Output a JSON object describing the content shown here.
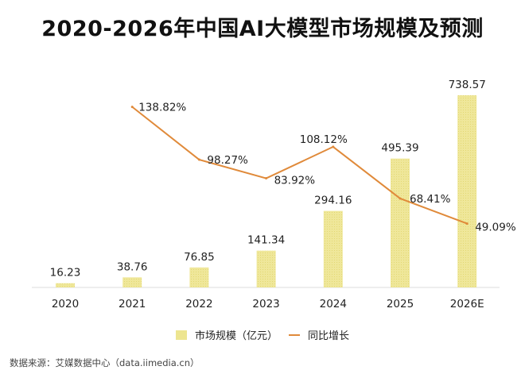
{
  "title": "2020-2026年中国AI大模型市场规模及预测",
  "chart_data": {
    "type": "bar+line",
    "title": "2020-2026年中国AI大模型市场规模及预测",
    "categories": [
      "2020",
      "2021",
      "2022",
      "2023",
      "2024",
      "2025",
      "2026E"
    ],
    "series": [
      {
        "name": "市场规模（亿元）",
        "type": "bar",
        "values": [
          16.23,
          38.76,
          76.85,
          141.34,
          294.16,
          495.39,
          738.57
        ],
        "labels": [
          "16.23",
          "38.76",
          "76.85",
          "141.34",
          "294.16",
          "495.39",
          "738.57"
        ],
        "color": "#ede590"
      },
      {
        "name": "同比增长",
        "type": "line",
        "values": [
          null,
          138.82,
          98.27,
          83.92,
          108.12,
          68.41,
          49.09
        ],
        "labels": [
          "",
          "138.82%",
          "98.27%",
          "83.92%",
          "108.12%",
          "68.41%",
          "49.09%"
        ],
        "color": "#e08a3a"
      }
    ],
    "legend": "bottom",
    "grid": false
  },
  "legend": {
    "bar": "市场规模（亿元）",
    "line": "同比增长"
  },
  "source": "数据来源：艾媒数据中心（data.iimedia.cn）"
}
